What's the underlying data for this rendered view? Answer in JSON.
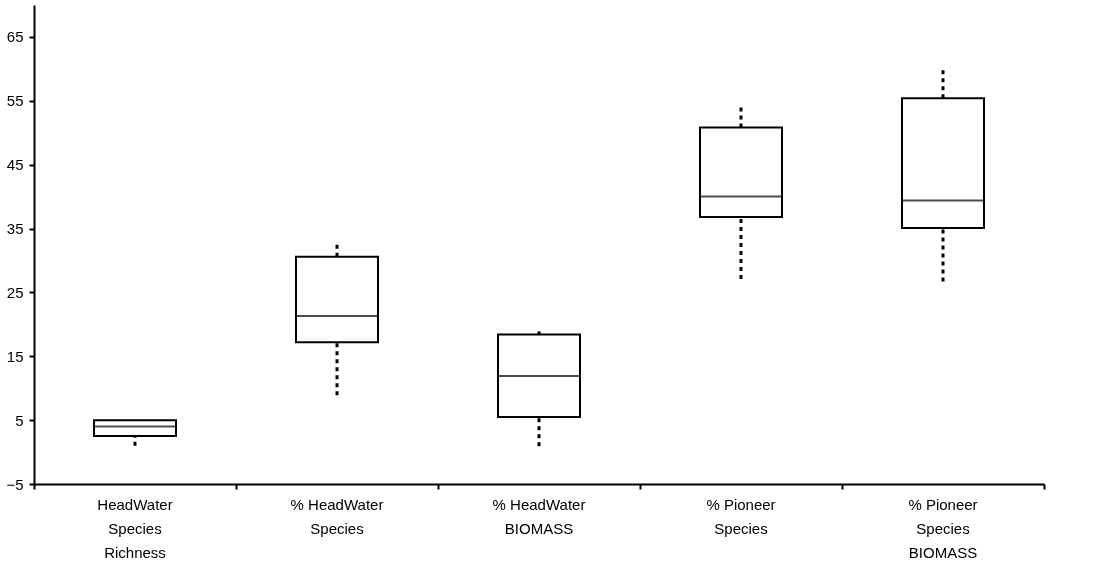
{
  "chart_data": {
    "type": "box",
    "categories": [
      "HeadWater Species Richness",
      "% HeadWater Species",
      "% HeadWater BIOMASS",
      "% Pioneer Species",
      "% Pioneer Species BIOMASS"
    ],
    "boxes": [
      {
        "low": 1,
        "q1": 2.5,
        "median": 4,
        "q3": 5,
        "high": 5
      },
      {
        "low": 8.9,
        "q1": 17.2,
        "median": 21.3,
        "q3": 30.6,
        "high": 33.1
      },
      {
        "low": 0.9,
        "q1": 5.5,
        "median": 11.9,
        "q3": 18.4,
        "high": 18.9
      },
      {
        "low": 27.1,
        "q1": 36.8,
        "median": 40,
        "q3": 50.8,
        "high": 54
      },
      {
        "low": 26.7,
        "q1": 35.1,
        "median": 39.4,
        "q3": 55.4,
        "high": 60.3
      }
    ],
    "ylim": [
      -5,
      70
    ],
    "yticks": [
      -5,
      5,
      15,
      25,
      35,
      45,
      55,
      65
    ],
    "grid": false,
    "line_style": "dotted"
  }
}
